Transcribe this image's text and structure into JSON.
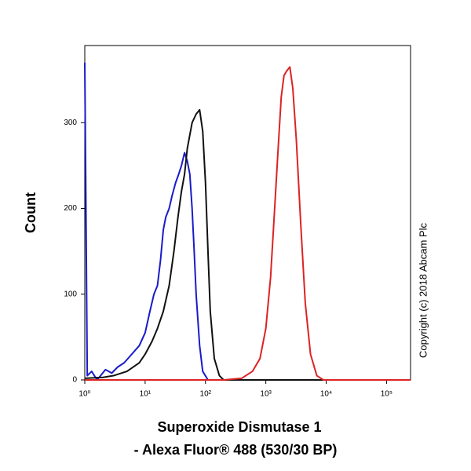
{
  "chart_data": {
    "type": "line",
    "ylabel": "Count",
    "xlabel": [
      "Superoxide Dismutase 1",
      "- Alexa Fluor® 488 (530/30 BP)"
    ],
    "annotation": "Copyright (c) 2018 Abcam Plc",
    "xscale": "log",
    "xlim": [
      1,
      250000
    ],
    "xticks": [
      {
        "value": 1,
        "label": "10⁰"
      },
      {
        "value": 10,
        "label": "10¹"
      },
      {
        "value": 100,
        "label": "10²"
      },
      {
        "value": 1000,
        "label": "10³"
      },
      {
        "value": 10000,
        "label": "10⁴"
      },
      {
        "value": 100000,
        "label": "10⁵"
      }
    ],
    "ylim": [
      0,
      390
    ],
    "yticks": [
      0,
      100,
      200,
      300
    ],
    "grid": false,
    "series": [
      {
        "color": "#1a1acc",
        "x": [
          1,
          1.1,
          1.3,
          1.6,
          2.2,
          2.8,
          3.5,
          4.5,
          6,
          8,
          10,
          12,
          14,
          16,
          18,
          20,
          22,
          25,
          28,
          32,
          36,
          40,
          45,
          50,
          55,
          60,
          65,
          70,
          80,
          90,
          110,
          1000,
          250000
        ],
        "values": [
          370,
          5,
          10,
          0,
          12,
          8,
          15,
          20,
          30,
          40,
          55,
          80,
          100,
          110,
          140,
          175,
          190,
          200,
          215,
          230,
          240,
          250,
          265,
          255,
          240,
          200,
          150,
          100,
          40,
          10,
          0,
          0,
          0
        ]
      },
      {
        "color": "#111111",
        "x": [
          1,
          2,
          3,
          5,
          8,
          10,
          13,
          16,
          20,
          25,
          30,
          35,
          40,
          45,
          50,
          60,
          70,
          80,
          90,
          100,
          110,
          120,
          140,
          170,
          200,
          250000
        ],
        "values": [
          2,
          3,
          5,
          10,
          20,
          30,
          45,
          60,
          80,
          110,
          150,
          190,
          220,
          240,
          270,
          300,
          310,
          315,
          290,
          230,
          150,
          80,
          25,
          5,
          0,
          0
        ]
      },
      {
        "color": "#dd2222",
        "x": [
          1,
          200,
          400,
          600,
          800,
          1000,
          1200,
          1400,
          1600,
          1800,
          2000,
          2200,
          2500,
          2800,
          3200,
          3800,
          4500,
          5500,
          7000,
          9000,
          250000
        ],
        "values": [
          0,
          0,
          2,
          10,
          25,
          60,
          120,
          200,
          270,
          330,
          355,
          360,
          365,
          340,
          280,
          180,
          90,
          30,
          5,
          0,
          0
        ]
      }
    ]
  }
}
